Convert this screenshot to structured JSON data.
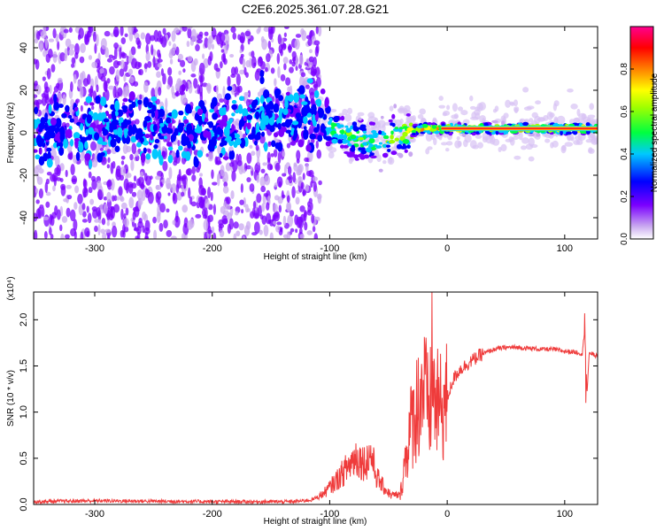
{
  "title": "C2E6.2025.361.07.28.G21",
  "chart_data": [
    {
      "type": "heatmap",
      "name": "spectrogram",
      "xlabel": "Height of straight line (km)",
      "ylabel": "Frequency (Hz)",
      "xlim": [
        -352,
        128
      ],
      "ylim": [
        -50,
        50
      ],
      "xticks": [
        -300,
        -200,
        -100,
        0,
        100
      ],
      "yticks": [
        -40,
        -20,
        0,
        20,
        40
      ],
      "colorbar": {
        "label": "Normalized spectral amplitude",
        "range": [
          0.0,
          1.0
        ],
        "ticks": [
          0.0,
          0.2,
          0.4,
          0.6,
          0.8
        ],
        "tick_labels": [
          "0.0",
          "0.2",
          "0.4",
          "0.6",
          "0.8"
        ],
        "colors": [
          "#ffffff",
          "#b98ce8",
          "#6a00ff",
          "#0000ff",
          "#00ffff",
          "#00ff00",
          "#ffff00",
          "#ff8000",
          "#ff0000",
          "#ff00ff"
        ]
      },
      "ridge": {
        "description_points_x": [
          -352,
          -300,
          -200,
          -145,
          -110,
          -100,
          -80,
          -60,
          -40,
          -20,
          0,
          50,
          100,
          128
        ],
        "center_freq": [
          0,
          2,
          1,
          10,
          8,
          2,
          -2,
          -5,
          0,
          2,
          2,
          2,
          2,
          2
        ],
        "peak_amplitude": [
          0.28,
          0.3,
          0.3,
          0.45,
          0.45,
          0.5,
          0.55,
          0.5,
          0.65,
          0.85,
          0.9,
          0.92,
          0.95,
          0.95
        ]
      }
    },
    {
      "type": "line",
      "name": "snr",
      "xlabel": "Height of straight line (km)",
      "ylabel": "SNR (10 * v/v)",
      "scale_label": "(x10⁴)",
      "color": "#ef3b3b",
      "xlim": [
        -352,
        128
      ],
      "ylim": [
        0.0,
        2.3
      ],
      "xticks": [
        -300,
        -200,
        -100,
        0,
        100
      ],
      "yticks": [
        0.0,
        0.5,
        1.0,
        1.5,
        2.0
      ],
      "ytick_labels": [
        "0.0",
        "0.5",
        "1.0",
        "1.5",
        "2.0"
      ],
      "x": [
        -352,
        -300,
        -200,
        -130,
        -115,
        -105,
        -95,
        -85,
        -78,
        -70,
        -65,
        -60,
        -55,
        -48,
        -40,
        -35,
        -30,
        -25,
        -20,
        -16,
        -12,
        -8,
        -4,
        0,
        5,
        10,
        20,
        30,
        40,
        50,
        60,
        70,
        80,
        90,
        100,
        110,
        115,
        117,
        119,
        121,
        125,
        128
      ],
      "y": [
        0.03,
        0.04,
        0.03,
        0.03,
        0.05,
        0.12,
        0.25,
        0.4,
        0.52,
        0.45,
        0.55,
        0.3,
        0.2,
        0.1,
        0.1,
        0.55,
        0.9,
        1.1,
        1.3,
        1.0,
        1.2,
        1.05,
        1.05,
        1.15,
        1.35,
        1.45,
        1.55,
        1.63,
        1.68,
        1.7,
        1.7,
        1.69,
        1.68,
        1.68,
        1.66,
        1.65,
        1.63,
        1.9,
        1.2,
        1.65,
        1.62,
        1.6
      ],
      "spikes": [
        {
          "x": -13,
          "y": 2.3
        },
        {
          "x": 117,
          "y": 2.07
        },
        {
          "x": 118,
          "y": 1.1
        }
      ]
    }
  ]
}
